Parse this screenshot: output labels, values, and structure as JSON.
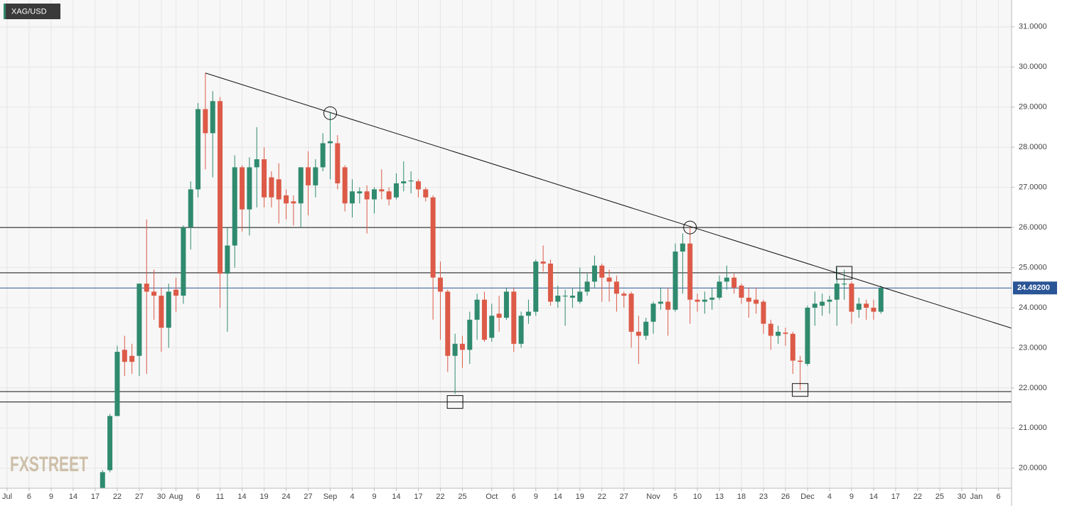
{
  "chart_data": {
    "type": "candlestick",
    "title": "XAG/USD",
    "watermark": "FXSTREET",
    "x": [
      "Jul 1",
      "Jul 2",
      "Jul 3",
      "Jul 6",
      "Jul 7",
      "Jul 8",
      "Jul 9",
      "Jul 10",
      "Jul 13",
      "Jul 14",
      "Jul 15",
      "Jul 16",
      "Jul 17",
      "Jul 20",
      "Jul 21",
      "Jul 22",
      "Jul 23",
      "Jul 24",
      "Jul 27",
      "Jul 28",
      "Jul 29",
      "Jul 30",
      "Jul 31",
      "Aug 3",
      "Aug 4",
      "Aug 5",
      "Aug 6",
      "Aug 7",
      "Aug 10",
      "Aug 11",
      "Aug 12",
      "Aug 13",
      "Aug 14",
      "Aug 17",
      "Aug 18",
      "Aug 19",
      "Aug 20",
      "Aug 21",
      "Aug 24",
      "Aug 25",
      "Aug 26",
      "Aug 27",
      "Aug 28",
      "Aug 31",
      "Sep 1",
      "Sep 2",
      "Sep 3",
      "Sep 4",
      "Sep 7",
      "Sep 8",
      "Sep 9",
      "Sep 10",
      "Sep 11",
      "Sep 14",
      "Sep 15",
      "Sep 16",
      "Sep 17",
      "Sep 18",
      "Sep 21",
      "Sep 22",
      "Sep 23",
      "Sep 24",
      "Sep 25",
      "Sep 28",
      "Sep 29",
      "Sep 30",
      "Oct 1",
      "Oct 2",
      "Oct 5",
      "Oct 6",
      "Oct 7",
      "Oct 8",
      "Oct 9",
      "Oct 12",
      "Oct 13",
      "Oct 14",
      "Oct 15",
      "Oct 16",
      "Oct 19",
      "Oct 20",
      "Oct 21",
      "Oct 22",
      "Oct 23",
      "Oct 26",
      "Oct 27",
      "Oct 28",
      "Oct 29",
      "Oct 30",
      "Nov 2",
      "Nov 3",
      "Nov 4",
      "Nov 5",
      "Nov 6",
      "Nov 9",
      "Nov 10",
      "Nov 11",
      "Nov 12",
      "Nov 13",
      "Nov 16",
      "Nov 17",
      "Nov 18",
      "Nov 19",
      "Nov 20",
      "Nov 23",
      "Nov 24",
      "Nov 25",
      "Nov 26",
      "Nov 27",
      "Nov 30",
      "Dec 1",
      "Dec 2",
      "Dec 3",
      "Dec 4",
      "Dec 7",
      "Dec 8",
      "Dec 9",
      "Dec 10",
      "Dec 11",
      "Dec 14",
      "Dec 15",
      "Dec 16",
      "Dec 17",
      "Dec 18",
      "Dec 21",
      "Dec 22",
      "Dec 23",
      "Dec 24",
      "Dec 25",
      "Dec 28",
      "Dec 29",
      "Dec 30",
      "Dec 31",
      "Jan 1",
      "Jan 4",
      "Jan 5",
      "Jan 6"
    ],
    "ohlc": [
      null,
      null,
      null,
      null,
      null,
      null,
      null,
      null,
      null,
      null,
      null,
      null,
      null,
      [
        19.35,
        19.95,
        19.3,
        19.9
      ],
      [
        19.95,
        21.35,
        19.9,
        21.3
      ],
      [
        21.3,
        23.05,
        21.3,
        22.9
      ],
      [
        22.95,
        23.3,
        22.3,
        22.65
      ],
      [
        22.8,
        23.1,
        22.35,
        22.65
      ],
      [
        22.8,
        24.6,
        22.3,
        24.6
      ],
      [
        24.6,
        26.2,
        22.35,
        24.4
      ],
      [
        24.4,
        24.95,
        23.7,
        24.3
      ],
      [
        24.3,
        24.5,
        22.9,
        23.5
      ],
      [
        23.5,
        24.6,
        23.0,
        24.4
      ],
      [
        24.45,
        24.75,
        23.9,
        24.3
      ],
      [
        24.3,
        26.05,
        24.1,
        26.0
      ],
      [
        26.0,
        27.15,
        25.45,
        26.95
      ],
      [
        26.95,
        29.1,
        26.75,
        28.95
      ],
      [
        28.95,
        29.85,
        27.45,
        28.35
      ],
      [
        28.35,
        29.4,
        27.25,
        29.15
      ],
      [
        29.15,
        29.25,
        24.0,
        24.85
      ],
      [
        24.85,
        26.0,
        23.4,
        25.55
      ],
      [
        25.55,
        27.8,
        25.0,
        27.5
      ],
      [
        27.5,
        27.55,
        25.9,
        26.45
      ],
      [
        26.45,
        27.75,
        25.8,
        27.5
      ],
      [
        27.5,
        28.5,
        26.5,
        27.7
      ],
      [
        27.7,
        28.0,
        26.5,
        26.75
      ],
      [
        27.25,
        27.4,
        26.5,
        26.75
      ],
      [
        27.2,
        27.6,
        26.1,
        26.7
      ],
      [
        26.8,
        26.95,
        26.2,
        26.6
      ],
      [
        26.65,
        26.8,
        26.05,
        26.6
      ],
      [
        26.6,
        27.5,
        26.0,
        27.5
      ],
      [
        27.5,
        27.9,
        26.3,
        27.05
      ],
      [
        27.05,
        27.7,
        26.75,
        27.5
      ],
      [
        27.5,
        28.35,
        27.4,
        28.1
      ],
      [
        28.1,
        28.85,
        27.2,
        28.15
      ],
      [
        28.1,
        28.3,
        26.95,
        27.1
      ],
      [
        27.5,
        27.55,
        26.4,
        26.6
      ],
      [
        26.6,
        27.2,
        26.25,
        26.9
      ],
      [
        26.85,
        27.0,
        26.6,
        26.9
      ],
      [
        26.9,
        27.05,
        25.85,
        26.7
      ],
      [
        26.7,
        27.0,
        26.35,
        26.95
      ],
      [
        26.95,
        27.45,
        26.7,
        26.9
      ],
      [
        26.9,
        27.0,
        26.55,
        26.7
      ],
      [
        26.75,
        27.35,
        26.7,
        27.1
      ],
      [
        27.1,
        27.65,
        26.9,
        27.15
      ],
      [
        27.15,
        27.4,
        26.85,
        27.17
      ],
      [
        27.15,
        27.2,
        26.75,
        26.95
      ],
      [
        26.95,
        27.0,
        26.65,
        26.75
      ],
      [
        26.75,
        26.8,
        23.7,
        24.75
      ],
      [
        24.75,
        25.15,
        23.2,
        24.4
      ],
      [
        24.4,
        24.45,
        22.4,
        22.8
      ],
      [
        22.8,
        23.35,
        21.85,
        23.1
      ],
      [
        23.1,
        23.3,
        22.5,
        22.95
      ],
      [
        22.95,
        23.9,
        22.6,
        23.7
      ],
      [
        23.7,
        24.35,
        23.2,
        24.2
      ],
      [
        24.2,
        24.4,
        23.15,
        23.2
      ],
      [
        23.25,
        24.1,
        23.15,
        23.8
      ],
      [
        23.85,
        24.3,
        23.4,
        23.75
      ],
      [
        23.75,
        24.5,
        23.7,
        24.4
      ],
      [
        24.4,
        24.5,
        22.9,
        23.1
      ],
      [
        23.1,
        23.9,
        23.0,
        23.8
      ],
      [
        23.8,
        24.2,
        23.6,
        23.9
      ],
      [
        23.9,
        25.2,
        23.8,
        25.15
      ],
      [
        25.15,
        25.55,
        24.9,
        25.1
      ],
      [
        25.1,
        25.2,
        24.05,
        24.15
      ],
      [
        24.15,
        24.55,
        24.0,
        24.3
      ],
      [
        24.28,
        24.45,
        23.55,
        24.3
      ],
      [
        24.25,
        24.5,
        24.0,
        24.3
      ],
      [
        24.15,
        25.0,
        24.1,
        24.4
      ],
      [
        24.4,
        24.85,
        24.3,
        24.65
      ],
      [
        24.65,
        25.3,
        24.5,
        25.05
      ],
      [
        25.05,
        25.1,
        24.15,
        24.75
      ],
      [
        24.75,
        24.95,
        24.15,
        24.65
      ],
      [
        24.65,
        24.8,
        23.9,
        24.35
      ],
      [
        24.35,
        24.4,
        24.0,
        24.3
      ],
      [
        24.35,
        24.4,
        23.0,
        23.4
      ],
      [
        23.4,
        23.8,
        22.6,
        23.3
      ],
      [
        23.3,
        23.75,
        23.2,
        23.65
      ],
      [
        23.65,
        24.15,
        23.35,
        24.1
      ],
      [
        24.1,
        24.5,
        23.95,
        24.15
      ],
      [
        24.15,
        24.5,
        23.3,
        23.95
      ],
      [
        23.95,
        25.6,
        23.9,
        25.4
      ],
      [
        25.4,
        25.85,
        24.35,
        25.6
      ],
      [
        25.6,
        26.0,
        23.6,
        24.2
      ],
      [
        24.2,
        24.35,
        23.9,
        24.15
      ],
      [
        24.15,
        24.4,
        23.85,
        24.2
      ],
      [
        24.2,
        24.5,
        23.95,
        24.25
      ],
      [
        24.25,
        24.8,
        24.2,
        24.65
      ],
      [
        24.65,
        25.05,
        24.45,
        24.75
      ],
      [
        24.75,
        24.85,
        24.35,
        24.5
      ],
      [
        24.55,
        24.6,
        24.1,
        24.25
      ],
      [
        24.25,
        24.5,
        23.75,
        24.15
      ],
      [
        24.2,
        24.5,
        23.85,
        24.1
      ],
      [
        24.15,
        24.2,
        23.35,
        23.6
      ],
      [
        23.6,
        23.7,
        22.95,
        23.3
      ],
      [
        23.3,
        23.55,
        23.1,
        23.4
      ],
      [
        23.38,
        23.5,
        23.05,
        23.35
      ],
      [
        23.35,
        23.4,
        22.35,
        22.68
      ],
      [
        22.68,
        22.8,
        21.95,
        22.65
      ],
      [
        22.6,
        24.05,
        22.55,
        24.0
      ],
      [
        24.0,
        24.4,
        23.55,
        24.1
      ],
      [
        24.05,
        24.35,
        23.8,
        24.15
      ],
      [
        24.15,
        24.3,
        23.85,
        24.2
      ],
      [
        24.2,
        25.0,
        23.55,
        24.6
      ],
      [
        24.58,
        24.95,
        24.2,
        24.6
      ],
      [
        24.6,
        24.65,
        23.6,
        23.9
      ],
      [
        23.95,
        24.25,
        23.75,
        24.1
      ],
      [
        24.1,
        24.2,
        23.7,
        24.0
      ],
      [
        24.0,
        24.2,
        23.7,
        23.9
      ],
      [
        23.9,
        24.55,
        23.85,
        24.492
      ],
      null,
      null,
      null,
      null,
      null,
      null,
      null,
      null,
      null,
      null,
      null,
      null,
      null,
      null,
      null,
      null
    ],
    "colors": {
      "up": "#2f8a6e",
      "down": "#dc5a47"
    },
    "ylim": [
      19.5,
      31.67
    ],
    "yticks": [
      {
        "value": 20,
        "label": "20.0000"
      },
      {
        "value": 21,
        "label": "21.0000"
      },
      {
        "value": 22,
        "label": "22.0000"
      },
      {
        "value": 23,
        "label": "23.0000"
      },
      {
        "value": 24,
        "label": "24.0000"
      },
      {
        "value": 25,
        "label": "25.0000"
      },
      {
        "value": 26,
        "label": "26.0000"
      },
      {
        "value": 27,
        "label": "27.0000"
      },
      {
        "value": 28,
        "label": "28.0000"
      },
      {
        "value": 29,
        "label": "29.0000"
      },
      {
        "value": 30,
        "label": "30.0000"
      },
      {
        "value": 31,
        "label": "31.0000"
      }
    ],
    "xticks": [
      {
        "value": "Jul 1",
        "label": "Jul"
      },
      {
        "value": "Jul 6",
        "label": "6"
      },
      {
        "value": "Jul 9",
        "label": "9"
      },
      {
        "value": "Jul 14",
        "label": "14"
      },
      {
        "value": "Jul 17",
        "label": "17"
      },
      {
        "value": "Jul 22",
        "label": "22"
      },
      {
        "value": "Jul 27",
        "label": "27"
      },
      {
        "value": "Jul 30",
        "label": "30"
      },
      {
        "value": "Aug 3",
        "label": "Aug"
      },
      {
        "value": "Aug 6",
        "label": "6"
      },
      {
        "value": "Aug 11",
        "label": "11"
      },
      {
        "value": "Aug 14",
        "label": "14"
      },
      {
        "value": "Aug 19",
        "label": "19"
      },
      {
        "value": "Aug 24",
        "label": "24"
      },
      {
        "value": "Aug 27",
        "label": "27"
      },
      {
        "value": "Sep 1",
        "label": "Sep"
      },
      {
        "value": "Sep 4",
        "label": "4"
      },
      {
        "value": "Sep 9",
        "label": "9"
      },
      {
        "value": "Sep 14",
        "label": "14"
      },
      {
        "value": "Sep 17",
        "label": "17"
      },
      {
        "value": "Sep 22",
        "label": "22"
      },
      {
        "value": "Sep 25",
        "label": "25"
      },
      {
        "value": "Oct 1",
        "label": "Oct"
      },
      {
        "value": "Oct 6",
        "label": "6"
      },
      {
        "value": "Oct 9",
        "label": "9"
      },
      {
        "value": "Oct 14",
        "label": "14"
      },
      {
        "value": "Oct 19",
        "label": "19"
      },
      {
        "value": "Oct 22",
        "label": "22"
      },
      {
        "value": "Oct 27",
        "label": "27"
      },
      {
        "value": "Nov 2",
        "label": "Nov"
      },
      {
        "value": "Nov 5",
        "label": "5"
      },
      {
        "value": "Nov 10",
        "label": "10"
      },
      {
        "value": "Nov 13",
        "label": "13"
      },
      {
        "value": "Nov 18",
        "label": "18"
      },
      {
        "value": "Nov 23",
        "label": "23"
      },
      {
        "value": "Nov 26",
        "label": "26"
      },
      {
        "value": "Dec 1",
        "label": "Dec"
      },
      {
        "value": "Dec 4",
        "label": "4"
      },
      {
        "value": "Dec 9",
        "label": "9"
      },
      {
        "value": "Dec 14",
        "label": "14"
      },
      {
        "value": "Dec 17",
        "label": "17"
      },
      {
        "value": "Dec 22",
        "label": "22"
      },
      {
        "value": "Dec 25",
        "label": "25"
      },
      {
        "value": "Dec 30",
        "label": "30"
      },
      {
        "value": "Jan 1",
        "label": "Jan"
      },
      {
        "value": "Jan 6",
        "label": "6"
      }
    ],
    "grid": true,
    "hlines": [
      {
        "value": 26.0,
        "color": "#111111"
      },
      {
        "value": 24.87,
        "color": "#111111"
      },
      {
        "value": 24.492,
        "color": "#2a5596"
      },
      {
        "value": 21.91,
        "color": "#111111"
      },
      {
        "value": 21.65,
        "color": "#111111"
      }
    ],
    "trendline": {
      "color": "#111111",
      "points": [
        {
          "x": "Aug 7",
          "value": 29.85
        },
        {
          "x": "Dec 15",
          "value": 24.52
        }
      ]
    },
    "markers": [
      {
        "x": "Sep 1",
        "value": 28.85,
        "shape": "circle"
      },
      {
        "x": "Nov 9",
        "value": 26.0,
        "shape": "circle"
      },
      {
        "x": "Sep 24",
        "value": 21.65,
        "shape": "square"
      },
      {
        "x": "Nov 30",
        "value": 21.95,
        "shape": "square"
      },
      {
        "x": "Dec 8",
        "value": 24.87,
        "shape": "square"
      }
    ],
    "last_price": {
      "value": 24.492,
      "label": "24.49200",
      "color": "#2a5596"
    }
  }
}
